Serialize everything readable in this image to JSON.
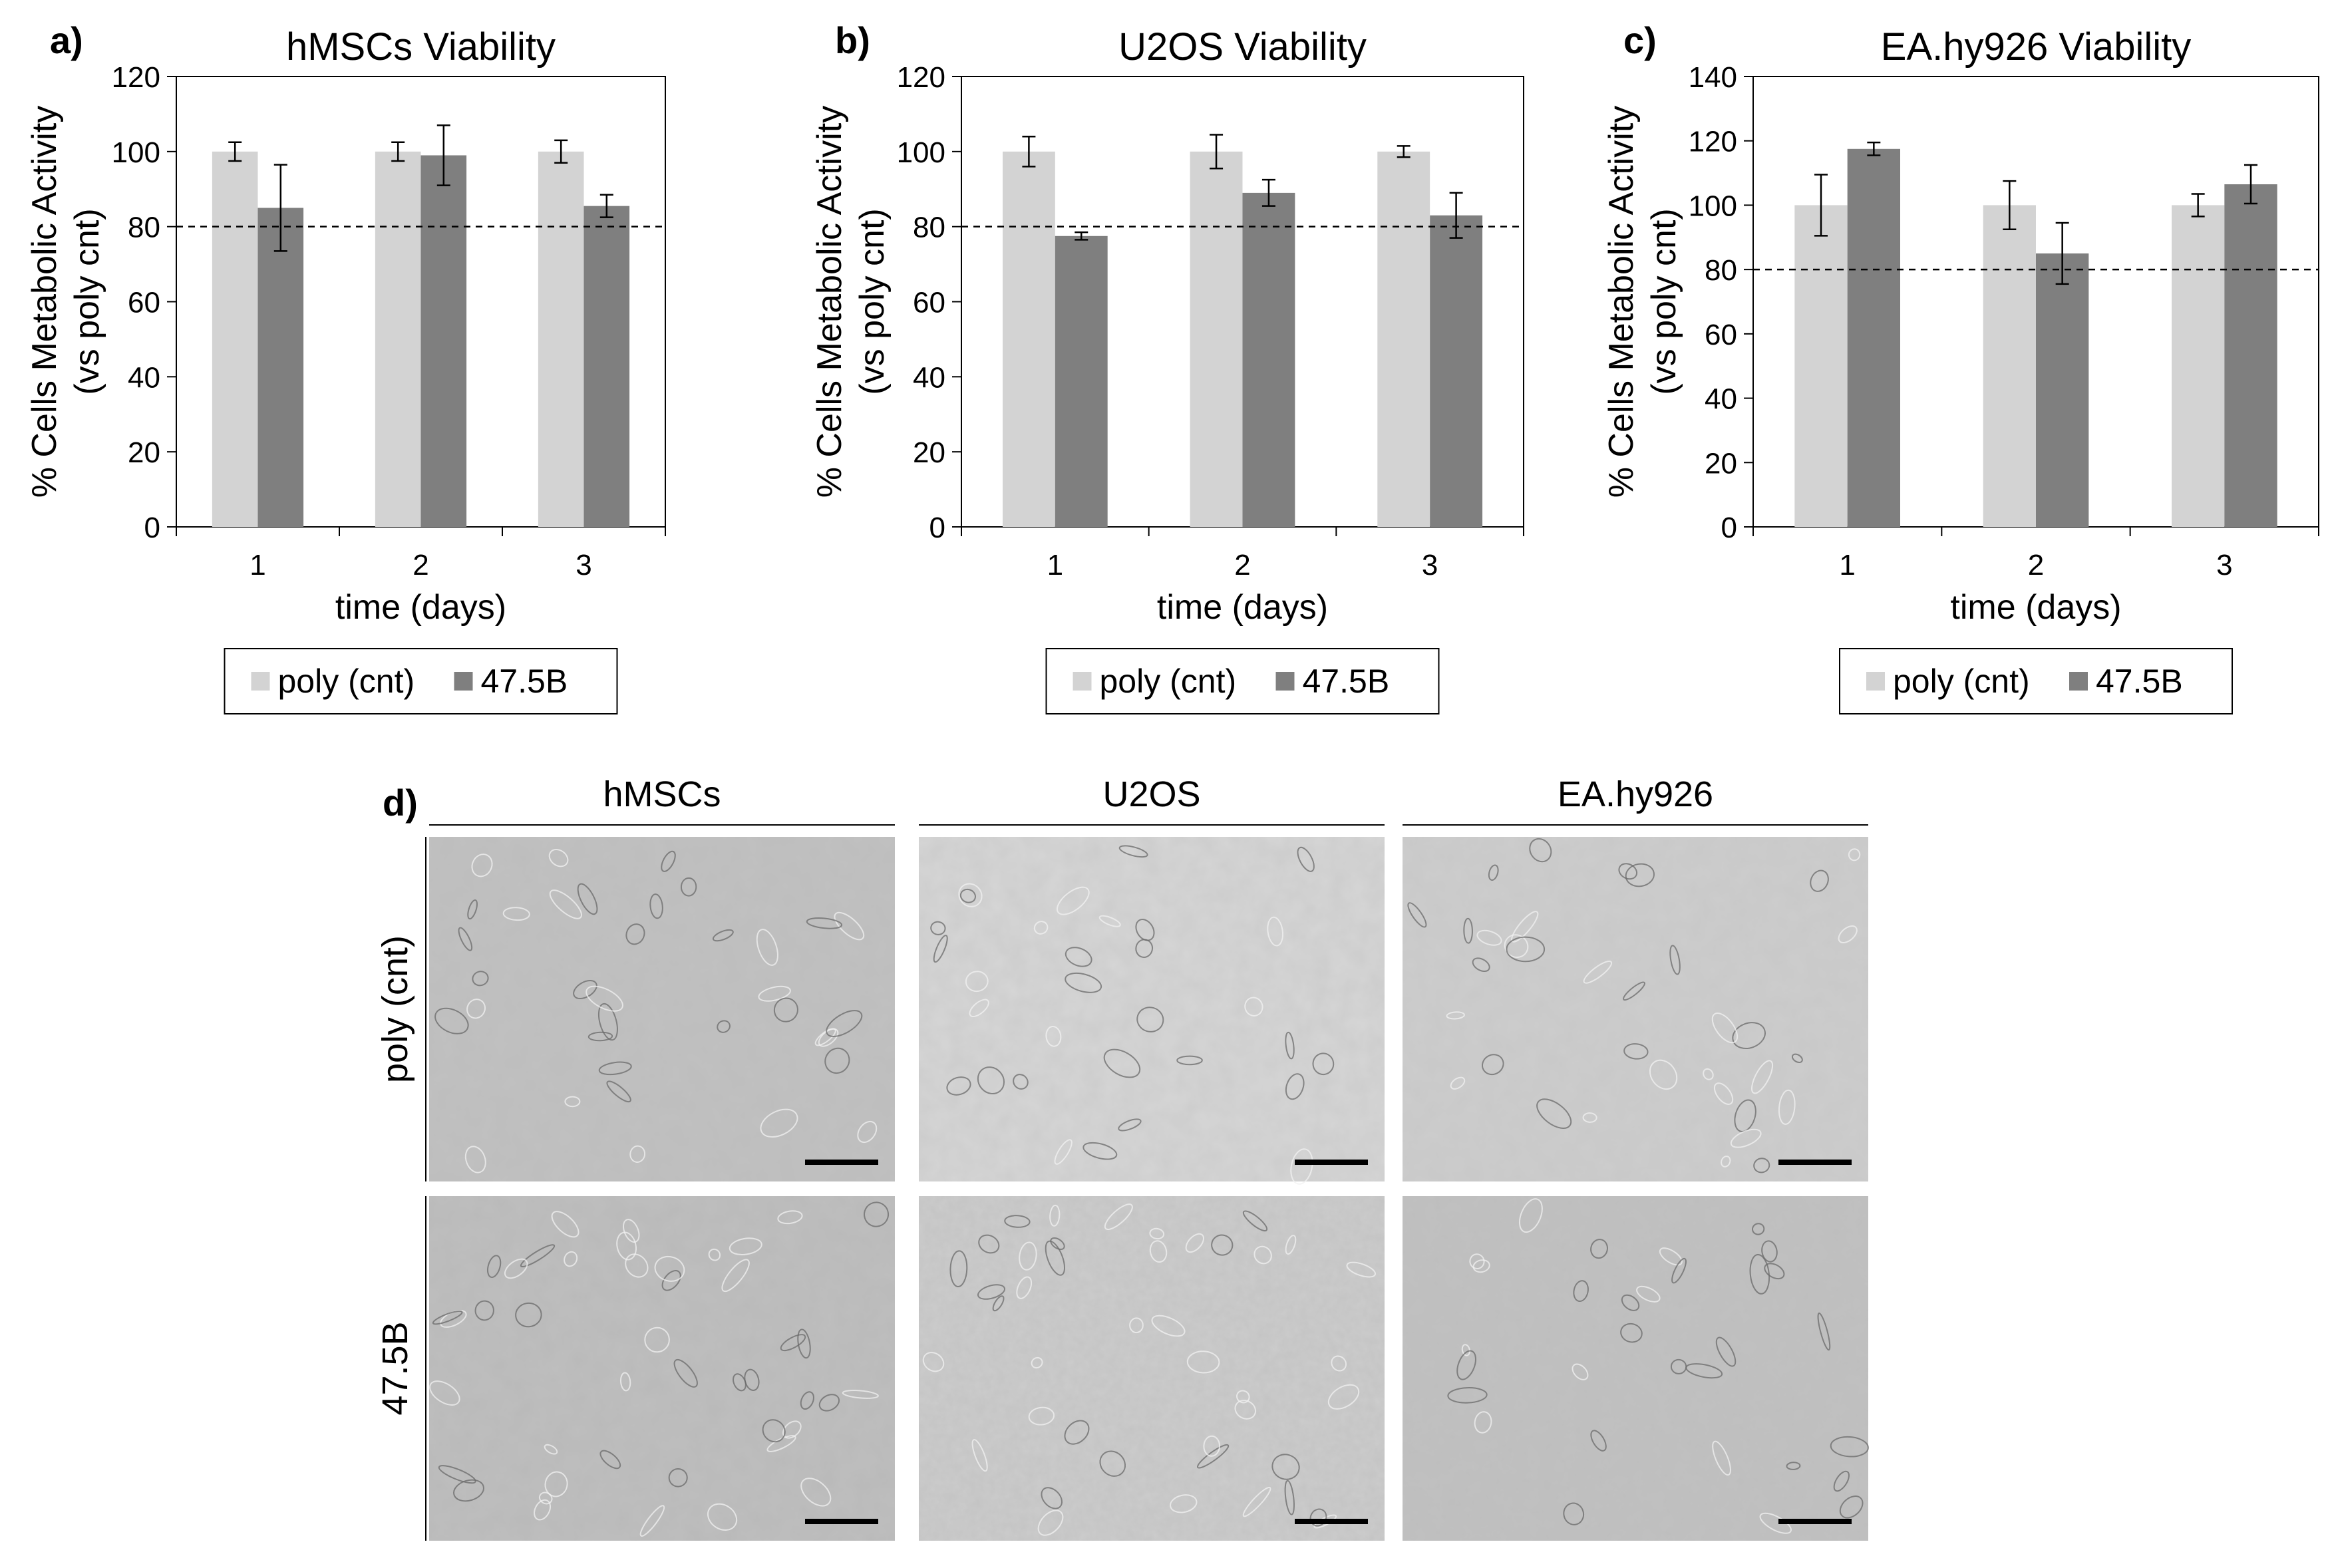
{
  "charts_panel": {
    "legend_labels": [
      "poly (cnt)",
      "47.5B"
    ],
    "series_colors": {
      "poly (cnt)": "#d3d3d3",
      "47.5B": "#7f7f7f"
    },
    "threshold_line_value": 80
  },
  "chart_data": [
    {
      "panel_letter": "a)",
      "type": "bar",
      "title": "hMSCs Viability",
      "xlabel": "time (days)",
      "ylabel_line1": "% Cells Metabolic Activity",
      "ylabel_line2": "(vs poly cnt)",
      "categories": [
        "1",
        "2",
        "3"
      ],
      "ylim": [
        0,
        120
      ],
      "yticks": [
        0,
        20,
        40,
        60,
        80,
        100,
        120
      ],
      "series": [
        {
          "name": "poly (cnt)",
          "values": [
            100,
            100,
            100
          ],
          "errors": [
            2.5,
            2.5,
            3
          ]
        },
        {
          "name": "47.5B",
          "values": [
            85,
            99,
            85.5
          ],
          "errors": [
            11.5,
            8,
            3
          ]
        }
      ],
      "reference_line": 80,
      "legend": "bottom",
      "grid": false
    },
    {
      "panel_letter": "b)",
      "type": "bar",
      "title": "U2OS Viability",
      "xlabel": "time (days)",
      "ylabel_line1": "% Cells Metabolic Activity",
      "ylabel_line2": "(vs poly cnt)",
      "categories": [
        "1",
        "2",
        "3"
      ],
      "ylim": [
        0,
        120
      ],
      "yticks": [
        0,
        20,
        40,
        60,
        80,
        100,
        120
      ],
      "series": [
        {
          "name": "poly (cnt)",
          "values": [
            100,
            100,
            100
          ],
          "errors": [
            4,
            4.5,
            1.5
          ]
        },
        {
          "name": "47.5B",
          "values": [
            77.5,
            89,
            83
          ],
          "errors": [
            1,
            3.5,
            6
          ]
        }
      ],
      "reference_line": 80,
      "legend": "bottom",
      "grid": false
    },
    {
      "panel_letter": "c)",
      "type": "bar",
      "title": "EA.hy926 Viability",
      "xlabel": "time (days)",
      "ylabel_line1": "% Cells Metabolic Activity",
      "ylabel_line2": "(vs poly cnt)",
      "categories": [
        "1",
        "2",
        "3"
      ],
      "ylim": [
        0,
        140
      ],
      "yticks": [
        0,
        20,
        40,
        60,
        80,
        100,
        120,
        140
      ],
      "series": [
        {
          "name": "poly (cnt)",
          "values": [
            100,
            100,
            100
          ],
          "errors": [
            9.5,
            7.5,
            3.5
          ]
        },
        {
          "name": "47.5B",
          "values": [
            117.5,
            85,
            106.5
          ],
          "errors": [
            2,
            9.5,
            6
          ]
        }
      ],
      "reference_line": 80,
      "legend": "bottom",
      "grid": false
    }
  ],
  "microscopy_panel": {
    "panel_letter": "d)",
    "column_titles": [
      "hMSCs",
      "U2OS",
      "EA.hy926"
    ],
    "row_labels": [
      "poly (cnt)",
      "47.5B"
    ]
  }
}
